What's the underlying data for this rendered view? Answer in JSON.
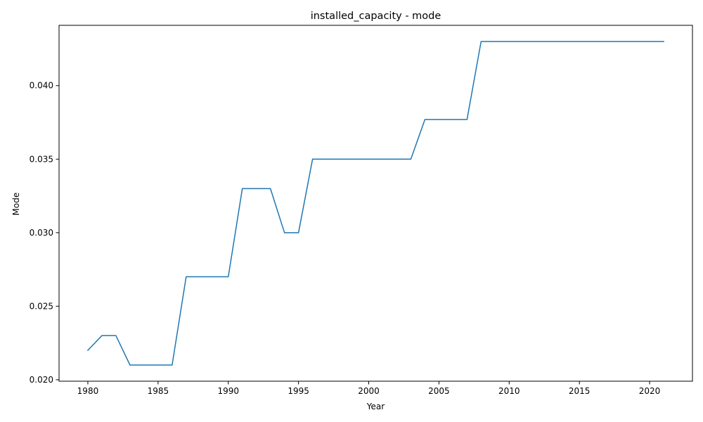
{
  "chart_data": {
    "type": "line",
    "title": "installed_capacity - mode",
    "xlabel": "Year",
    "ylabel": "Mode",
    "xlim": [
      1977.95,
      2023.05
    ],
    "ylim": [
      0.0199,
      0.0441
    ],
    "x_ticks": [
      1980,
      1985,
      1990,
      1995,
      2000,
      2005,
      2010,
      2015,
      2020
    ],
    "y_ticks": [
      0.02,
      0.025,
      0.03,
      0.035,
      0.04
    ],
    "y_tick_labels": [
      "0.020",
      "0.025",
      "0.030",
      "0.035",
      "0.040"
    ],
    "grid": false,
    "series": [
      {
        "color": "#1f77b4",
        "x": [
          1980,
          1981,
          1982,
          1983,
          1984,
          1985,
          1986,
          1987,
          1988,
          1989,
          1990,
          1991,
          1992,
          1993,
          1994,
          1995,
          1996,
          1997,
          1998,
          1999,
          2000,
          2001,
          2002,
          2003,
          2004,
          2005,
          2006,
          2007,
          2008,
          2009,
          2010,
          2011,
          2012,
          2013,
          2014,
          2015,
          2016,
          2017,
          2018,
          2019,
          2020,
          2021
        ],
        "values": [
          0.022,
          0.023,
          0.023,
          0.021,
          0.021,
          0.021,
          0.021,
          0.027,
          0.027,
          0.027,
          0.027,
          0.033,
          0.033,
          0.033,
          0.03,
          0.03,
          0.035,
          0.035,
          0.035,
          0.035,
          0.035,
          0.035,
          0.035,
          0.035,
          0.0377,
          0.0377,
          0.0377,
          0.0377,
          0.043,
          0.043,
          0.043,
          0.043,
          0.043,
          0.043,
          0.043,
          0.043,
          0.043,
          0.043,
          0.043,
          0.043,
          0.043,
          0.043
        ]
      }
    ]
  }
}
